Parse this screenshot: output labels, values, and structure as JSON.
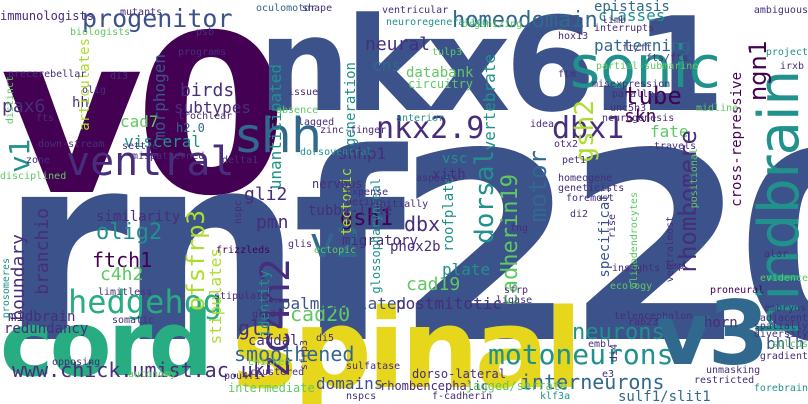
{
  "palette": {
    "purple": "#440154",
    "indigo": "#472d7b",
    "slate": "#3b528b",
    "blue": "#31688e",
    "teal": "#21918c",
    "green": "#27ad81",
    "lime": "#5ec962",
    "yellowgreen": "#addc30",
    "yellow": "#e6d71c"
  },
  "words": [
    {
      "text": "v0",
      "color": "#440154"
    },
    {
      "text": "rnf220",
      "color": "#3b528b"
    },
    {
      "text": "nkx6.1",
      "color": "#3b528b"
    },
    {
      "text": "spinal",
      "color": "#e6d71c"
    },
    {
      "text": "cord",
      "color": "#27ad81"
    },
    {
      "text": "v3",
      "color": "#31688e"
    },
    {
      "text": "sonic",
      "color": "#21918c"
    },
    {
      "text": "hindbrain",
      "color": "#21918c"
    },
    {
      "text": "shh",
      "color": "#31688e"
    },
    {
      "text": "ventral",
      "color": "#472d7b"
    },
    {
      "text": "hedgehog",
      "color": "#27ad81"
    },
    {
      "text": "motoneurons",
      "color": "#21918c"
    },
    {
      "text": "v2",
      "color": "#31688e"
    },
    {
      "text": "zc4h2",
      "color": "#472d7b"
    },
    {
      "text": "nkx2.9",
      "color": "#472d7b"
    },
    {
      "text": "dbx1",
      "color": "#472d7b"
    },
    {
      "text": "progenitor",
      "color": "#3b528b"
    },
    {
      "text": "homeodomain",
      "color": "#31688e"
    },
    {
      "text": "neural",
      "color": "#472d7b"
    },
    {
      "text": "classes",
      "color": "#21918c"
    },
    {
      "text": "patterning",
      "color": "#31688e"
    },
    {
      "text": "ngn1",
      "color": "#440154"
    },
    {
      "text": "epistasis",
      "color": "#31688e"
    },
    {
      "text": "tube",
      "color": "#440154"
    },
    {
      "text": "gsh2",
      "color": "#addc30"
    },
    {
      "text": "skn",
      "color": "#440154"
    },
    {
      "text": "fate",
      "color": "#5ec962"
    },
    {
      "text": "rhombomere",
      "color": "#472d7b"
    },
    {
      "text": "cadherin19",
      "color": "#5ec962"
    },
    {
      "text": "dorsal",
      "color": "#21918c"
    },
    {
      "text": "motor",
      "color": "#31688e"
    },
    {
      "text": "neurons",
      "color": "#21918c"
    },
    {
      "text": "interneurons",
      "color": "#31688e"
    },
    {
      "text": "www.chick.umist.ac.uk",
      "color": "#472d7b"
    },
    {
      "text": "smoothened",
      "color": "#31688e"
    },
    {
      "text": "gli",
      "color": "#472d7b"
    },
    {
      "text": "cad20",
      "color": "#5ec962"
    },
    {
      "text": "cad19",
      "color": "#5ec962"
    },
    {
      "text": "dbx",
      "color": "#472d7b"
    },
    {
      "text": "gsh1",
      "color": "#440154"
    },
    {
      "text": "pmn",
      "color": "#472d7b"
    },
    {
      "text": "olig2",
      "color": "#21918c"
    },
    {
      "text": "ftch1",
      "color": "#440154"
    },
    {
      "text": "c4h2",
      "color": "#5ec962"
    },
    {
      "text": "boundary",
      "color": "#472d7b"
    },
    {
      "text": "branchio",
      "color": "#472d7b"
    },
    {
      "text": "ofsfrp3",
      "color": "#addc30"
    },
    {
      "text": "stipulates",
      "color": "#addc30"
    },
    {
      "text": "identity",
      "color": "#21918c"
    },
    {
      "text": "gli2",
      "color": "#472d7b"
    },
    {
      "text": "shhp1",
      "color": "#472d7b"
    },
    {
      "text": "v1",
      "color": "#21918c"
    },
    {
      "text": "pax6",
      "color": "#472d7b"
    },
    {
      "text": "cad7",
      "color": "#5ec962"
    },
    {
      "text": "visceral",
      "color": "#21918c"
    },
    {
      "text": "birds",
      "color": "#472d7b"
    },
    {
      "text": "subtypes",
      "color": "#472d7b"
    },
    {
      "text": "morphogen",
      "color": "#3b528b"
    },
    {
      "text": "hh",
      "color": "#472d7b"
    },
    {
      "text": "articulates",
      "color": "#addc30"
    },
    {
      "text": "immunologists",
      "color": "#472d7b"
    },
    {
      "text": "nonpalmitoylated",
      "color": "#3b528b"
    },
    {
      "text": "postmitotic",
      "color": "#472d7b"
    },
    {
      "text": "plate",
      "color": "#21918c"
    },
    {
      "text": "phox2b",
      "color": "#472d7b"
    },
    {
      "text": "migratory",
      "color": "#472d7b"
    },
    {
      "text": "tubby-like",
      "color": "#472d7b"
    },
    {
      "text": "roofplate",
      "color": "#21918c"
    },
    {
      "text": "vsc",
      "color": "#21918c"
    },
    {
      "text": "xith",
      "color": "#472d7b"
    },
    {
      "text": "tectonic",
      "color": "#addc30"
    },
    {
      "text": "vertebrate",
      "color": "#21918c"
    },
    {
      "text": "generation",
      "color": "#21918c"
    },
    {
      "text": "unanticipated",
      "color": "#21918c"
    },
    {
      "text": "cns",
      "color": "#31688e"
    },
    {
      "text": "databank",
      "color": "#5ec962"
    },
    {
      "text": "circuitry",
      "color": "#5ec962"
    },
    {
      "text": "bhlh",
      "color": "#3b528b"
    },
    {
      "text": "horn",
      "color": "#472d7b"
    },
    {
      "text": "caudal",
      "color": "#472d7b"
    },
    {
      "text": "midbrain",
      "color": "#472d7b"
    },
    {
      "text": "redundancy",
      "color": "#472d7b"
    },
    {
      "text": "intermediate",
      "color": "#5ec962"
    },
    {
      "text": "domains",
      "color": "#3b528b"
    },
    {
      "text": "sulf1/slit1",
      "color": "#31688e"
    },
    {
      "text": "specification",
      "color": "#3b528b"
    },
    {
      "text": "cross-repressive",
      "color": "#440154"
    },
    {
      "text": "similarity",
      "color": "#472d7b"
    },
    {
      "text": "nervous",
      "color": "#472d7b"
    },
    {
      "text": "frizzleds",
      "color": "#440154"
    },
    {
      "text": "glossopharyngeal",
      "color": "#21918c"
    },
    {
      "text": "dorso-lateral",
      "color": "#472d7b"
    },
    {
      "text": "rhombencephalic",
      "color": "#472d7b"
    },
    {
      "text": "jagged/serrate",
      "color": "#5ec962"
    },
    {
      "text": "h2.0",
      "color": "#31688e"
    },
    {
      "text": "trochlear",
      "color": "#472d7b"
    },
    {
      "text": "programs",
      "color": "#472d7b"
    },
    {
      "text": "psb",
      "color": "#472d7b"
    },
    {
      "text": "oculomotor",
      "color": "#31688e"
    },
    {
      "text": "shape",
      "color": "#472d7b"
    },
    {
      "text": "ventricular",
      "color": "#472d7b"
    },
    {
      "text": "issue",
      "color": "#472d7b"
    },
    {
      "text": "absence",
      "color": "#5ec962"
    },
    {
      "text": "lagged",
      "color": "#472d7b"
    },
    {
      "text": "neuroregeneration",
      "color": "#21918c"
    },
    {
      "text": "organizing",
      "color": "#5ec962"
    },
    {
      "text": "tulp3",
      "color": "#5ec962"
    },
    {
      "text": "hox13",
      "color": "#472d7b"
    },
    {
      "text": "interrupts",
      "color": "#472d7b"
    },
    {
      "text": "ambiguous",
      "color": "#472d7b"
    },
    {
      "text": "limb",
      "color": "#472d7b"
    },
    {
      "text": "project",
      "color": "#21918c"
    },
    {
      "text": "irxb",
      "color": "#472d7b"
    },
    {
      "text": "ftm",
      "color": "#472d7b"
    },
    {
      "text": "misexpression",
      "color": "#472d7b"
    },
    {
      "text": "parallel",
      "color": "#472d7b"
    },
    {
      "text": "unc5h3",
      "color": "#472d7b"
    },
    {
      "text": "midline",
      "color": "#5ec962"
    },
    {
      "text": "neurogenesis",
      "color": "#472d7b"
    },
    {
      "text": "travels",
      "color": "#472d7b"
    },
    {
      "text": "positional",
      "color": "#5ec962"
    },
    {
      "text": "anterior",
      "color": "#21918c"
    },
    {
      "text": "idea",
      "color": "#472d7b"
    },
    {
      "text": "otx2",
      "color": "#472d7b"
    },
    {
      "text": "pet1",
      "color": "#472d7b"
    },
    {
      "text": "zinc-finger",
      "color": "#472d7b"
    },
    {
      "text": "dorsoventral",
      "color": "#21918c"
    },
    {
      "text": "mispatterned",
      "color": "#472d7b"
    },
    {
      "text": "delta1",
      "color": "#472d7b"
    },
    {
      "text": "aspects",
      "color": "#472d7b"
    },
    {
      "text": "homeogene",
      "color": "#472d7b"
    },
    {
      "text": "geneticists",
      "color": "#472d7b"
    },
    {
      "text": "foremost",
      "color": "#472d7b"
    },
    {
      "text": "expense",
      "color": "#472d7b"
    },
    {
      "text": "derive",
      "color": "#472d7b"
    },
    {
      "text": "initially",
      "color": "#472d7b"
    },
    {
      "text": "fng",
      "color": "#472d7b"
    },
    {
      "text": "di2",
      "color": "#472d7b"
    },
    {
      "text": "rise",
      "color": "#472d7b"
    },
    {
      "text": "oligodendrocytes",
      "color": "#5ec962"
    },
    {
      "text": "ventralmost",
      "color": "#472d7b"
    },
    {
      "text": "bmp",
      "color": "#472d7b"
    },
    {
      "text": "alar",
      "color": "#472d7b"
    },
    {
      "text": "evidence",
      "color": "#5ec962"
    },
    {
      "text": "proneural",
      "color": "#440154"
    },
    {
      "text": "insights",
      "color": "#472d7b"
    },
    {
      "text": "sfrp",
      "color": "#472d7b"
    },
    {
      "text": "ligase",
      "color": "#472d7b"
    },
    {
      "text": "ecology",
      "color": "#5ec962"
    },
    {
      "text": "embryos",
      "color": "#472d7b"
    },
    {
      "text": "adjacent",
      "color": "#472d7b"
    },
    {
      "text": "spatially",
      "color": "#472d7b"
    },
    {
      "text": "telencephalon",
      "color": "#472d7b"
    },
    {
      "text": "rab23",
      "color": "#472d7b"
    },
    {
      "text": "diversity",
      "color": "#472d7b"
    },
    {
      "text": "sulcus",
      "color": "#5ec962"
    },
    {
      "text": "gradient",
      "color": "#472d7b"
    },
    {
      "text": "embl",
      "color": "#472d7b"
    },
    {
      "text": "di4",
      "color": "#472d7b"
    },
    {
      "text": "e3",
      "color": "#472d7b"
    },
    {
      "text": "unmasking",
      "color": "#472d7b"
    },
    {
      "text": "restricted",
      "color": "#472d7b"
    },
    {
      "text": "forebrain",
      "color": "#21918c"
    },
    {
      "text": "f-cadherin",
      "color": "#472d7b"
    },
    {
      "text": "klf3a",
      "color": "#21918c"
    },
    {
      "text": "nspcs",
      "color": "#472d7b"
    },
    {
      "text": "chicken",
      "color": "#5ec962"
    },
    {
      "text": "clustered",
      "color": "#472d7b"
    },
    {
      "text": "pou4f1",
      "color": "#472d7b"
    },
    {
      "text": "sulfatase",
      "color": "#472d7b"
    },
    {
      "text": "di5",
      "color": "#472d7b"
    },
    {
      "text": "gli3",
      "color": "#472d7b"
    },
    {
      "text": "somatic",
      "color": "#472d7b"
    },
    {
      "text": "opposing",
      "color": "#472d7b"
    },
    {
      "text": "autonomy",
      "color": "#5ec962"
    },
    {
      "text": "limitless",
      "color": "#472d7b"
    },
    {
      "text": "glis",
      "color": "#472d7b"
    },
    {
      "text": "nspc",
      "color": "#472d7b"
    },
    {
      "text": "ectopic",
      "color": "#5ec962"
    },
    {
      "text": "sfrp3",
      "color": "#472d7b"
    },
    {
      "text": "prosomeres",
      "color": "#21918c"
    },
    {
      "text": "zone",
      "color": "#472d7b"
    },
    {
      "text": "disciplined",
      "color": "#5ec962"
    },
    {
      "text": "down-stream",
      "color": "#472d7b"
    },
    {
      "text": "settle",
      "color": "#472d7b"
    },
    {
      "text": "fts",
      "color": "#472d7b"
    },
    {
      "text": "olig",
      "color": "#472d7b"
    },
    {
      "text": "precerebellar",
      "color": "#472d7b"
    },
    {
      "text": "distinct",
      "color": "#5ec962"
    },
    {
      "text": "biologists",
      "color": "#5ec962"
    },
    {
      "text": "mutants",
      "color": "#472d7b"
    },
    {
      "text": "stipulate",
      "color": "#472d7b"
    },
    {
      "text": "di3",
      "color": "#472d7b"
    },
    {
      "text": "ft/ft",
      "color": "#472d7b"
    },
    {
      "text": "fts/fts",
      "color": "#472d7b"
    },
    {
      "text": "partial-submarine",
      "color": "#5ec962"
    }
  ]
}
